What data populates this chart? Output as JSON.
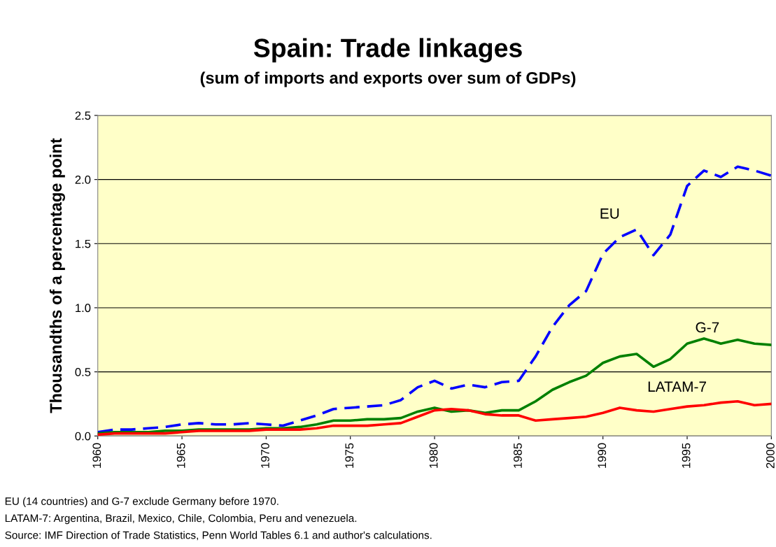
{
  "chart_data": {
    "type": "line",
    "title": "Spain: Trade linkages",
    "subtitle": "(sum of imports and exports over sum of GDPs)",
    "ylabel": "Thousandths of a percentage point",
    "x": [
      1960,
      1961,
      1962,
      1963,
      1964,
      1965,
      1966,
      1967,
      1968,
      1969,
      1970,
      1971,
      1972,
      1973,
      1974,
      1975,
      1976,
      1977,
      1978,
      1979,
      1980,
      1981,
      1982,
      1983,
      1984,
      1985,
      1986,
      1987,
      1988,
      1989,
      1990,
      1991,
      1992,
      1993,
      1994,
      1995,
      1996,
      1997,
      1998,
      1999,
      2000
    ],
    "series": [
      {
        "name": "EU",
        "color": "#0000ff",
        "line_style": "dashed",
        "values": [
          0.03,
          0.05,
          0.05,
          0.06,
          0.07,
          0.09,
          0.1,
          0.09,
          0.09,
          0.1,
          0.09,
          0.08,
          0.12,
          0.16,
          0.21,
          0.22,
          0.23,
          0.24,
          0.28,
          0.38,
          0.43,
          0.37,
          0.4,
          0.38,
          0.42,
          0.43,
          0.62,
          0.85,
          1.02,
          1.13,
          1.42,
          1.55,
          1.61,
          1.41,
          1.57,
          1.95,
          2.07,
          2.02,
          2.1,
          2.07,
          2.03
        ]
      },
      {
        "name": "G-7",
        "color": "#008000",
        "line_style": "solid",
        "values": [
          0.02,
          0.03,
          0.03,
          0.03,
          0.04,
          0.04,
          0.05,
          0.05,
          0.05,
          0.05,
          0.06,
          0.06,
          0.07,
          0.09,
          0.12,
          0.12,
          0.13,
          0.13,
          0.14,
          0.19,
          0.22,
          0.19,
          0.2,
          0.18,
          0.2,
          0.2,
          0.27,
          0.36,
          0.42,
          0.47,
          0.57,
          0.62,
          0.64,
          0.54,
          0.6,
          0.72,
          0.76,
          0.72,
          0.75,
          0.72,
          0.71
        ]
      },
      {
        "name": "LATAM-7",
        "color": "#ff0000",
        "line_style": "solid",
        "values": [
          0.01,
          0.02,
          0.02,
          0.02,
          0.02,
          0.03,
          0.04,
          0.04,
          0.04,
          0.04,
          0.05,
          0.05,
          0.05,
          0.06,
          0.08,
          0.08,
          0.08,
          0.09,
          0.1,
          0.15,
          0.2,
          0.21,
          0.2,
          0.17,
          0.16,
          0.16,
          0.12,
          0.13,
          0.14,
          0.15,
          0.18,
          0.22,
          0.2,
          0.19,
          0.21,
          0.23,
          0.24,
          0.26,
          0.27,
          0.24,
          0.25
        ]
      }
    ],
    "xlim": [
      1960,
      2000
    ],
    "xticks": [
      1960,
      1965,
      1970,
      1975,
      1980,
      1985,
      1990,
      1995,
      2000
    ],
    "ylim": [
      0,
      2.5
    ],
    "yticks": [
      {
        "value": 0,
        "label": "0.0"
      },
      {
        "value": 0.5,
        "label": "0.5"
      },
      {
        "value": 1,
        "label": "1.0"
      },
      {
        "value": 1.5,
        "label": "1.5"
      },
      {
        "value": 2,
        "label": "2.0"
      },
      {
        "value": 2.5,
        "label": "2.5"
      }
    ],
    "grid": "y",
    "legend": false,
    "marker": "none",
    "annotations": [
      "EU (14 countries) and G-7 exclude Germany before 1970.",
      "LATAM-7: Argentina, Brazil, Mexico, Chile, Colombia, Peru and venezuela.",
      "Source: IMF Direction of Trade Statistics, Penn World Tables 6.1 and author's calculations."
    ]
  }
}
